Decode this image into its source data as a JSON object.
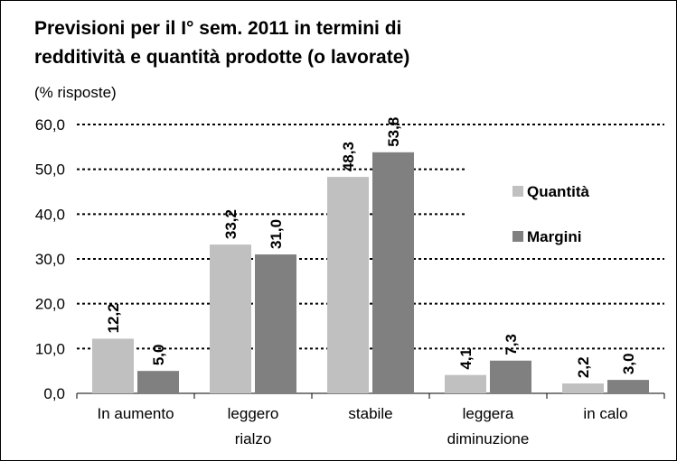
{
  "chart_data": {
    "type": "bar",
    "title": "Previsioni per il I° sem. 2011 in termini di\nredditività e quantità prodotte (o lavorate)",
    "subtitle": "(% risposte)",
    "categories": [
      "In aumento",
      "leggero\nrialzo",
      "stabile",
      "leggera\ndiminuzione",
      "in calo"
    ],
    "series": [
      {
        "name": "Quantità",
        "color": "#c0c0c0",
        "values": [
          12.2,
          33.2,
          48.3,
          4.1,
          2.2
        ],
        "value_labels": [
          "12,2",
          "33,2",
          "48,3",
          "4,1",
          "2,2"
        ]
      },
      {
        "name": "Margini",
        "color": "#808080",
        "values": [
          5.0,
          31.0,
          53.8,
          7.3,
          3.0
        ],
        "value_labels": [
          "5,0",
          "31,0",
          "53,8",
          "7,3",
          "3,0"
        ]
      }
    ],
    "ylim": [
      0,
      60
    ],
    "yticks": [
      {
        "value": 0,
        "label": "0,0"
      },
      {
        "value": 10,
        "label": "10,0"
      },
      {
        "value": 20,
        "label": "20,0"
      },
      {
        "value": 30,
        "label": "30,0"
      },
      {
        "value": 40,
        "label": "40,0"
      },
      {
        "value": 50,
        "label": "50,0"
      },
      {
        "value": 60,
        "label": "60,0"
      }
    ],
    "grid": true,
    "legend": "right"
  }
}
